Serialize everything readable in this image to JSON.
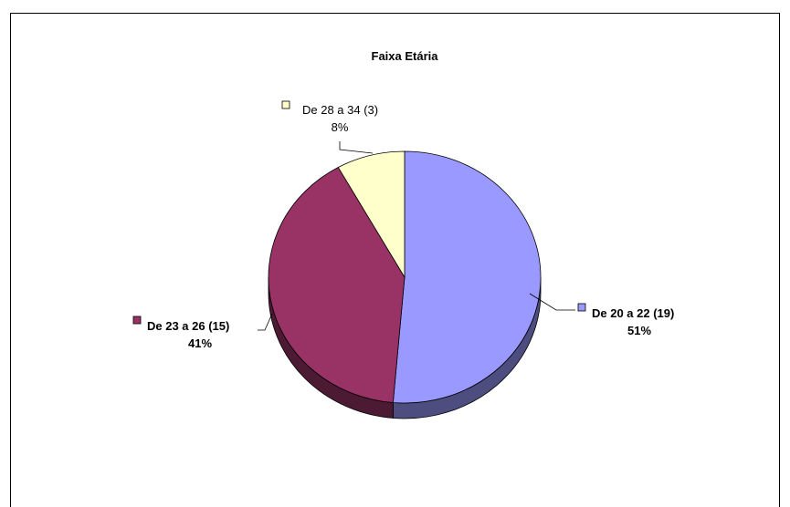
{
  "chart_data": {
    "type": "pie",
    "title": "Faixa Etária",
    "slices": [
      {
        "label": "De 20 a 22 (19)",
        "percent_label": "51%",
        "value": 19,
        "color": "#9999FF",
        "side_color": "#4D4D80",
        "bold": true
      },
      {
        "label": "De 23 a 26 (15)",
        "percent_label": "41%",
        "value": 15,
        "color": "#993366",
        "side_color": "#4D1A33",
        "bold": true
      },
      {
        "label": "De 28 a 34 (3)",
        "percent_label": "8%",
        "value": 3,
        "color": "#FFFFCC",
        "side_color": "#808066",
        "bold": false
      }
    ],
    "legend": "none",
    "three_d": true
  }
}
